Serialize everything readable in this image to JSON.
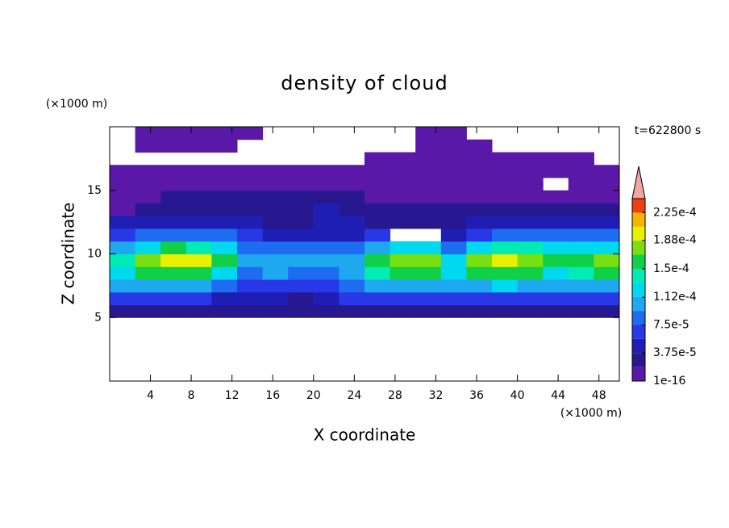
{
  "chart_data": {
    "type": "contour",
    "title": "density of cloud",
    "annotation": "t=622800 s",
    "x_label": "X coordinate",
    "y_label": "Z coordinate",
    "x_unit": "(×1000 m)",
    "y_unit": "(×1000 m)",
    "xlim": [
      0,
      50
    ],
    "ylim": [
      0,
      20
    ],
    "xticks": [
      4,
      8,
      12,
      16,
      20,
      24,
      28,
      32,
      36,
      40,
      44,
      48
    ],
    "yticks": [
      5,
      10,
      15
    ],
    "x": [
      1.25,
      3.75,
      6.25,
      8.75,
      11.25,
      13.75,
      16.25,
      18.75,
      21.25,
      23.75,
      26.25,
      28.75,
      31.25,
      33.75,
      36.25,
      38.75,
      41.25,
      43.75,
      46.25,
      48.75
    ],
    "y": [
      0.5,
      1.5,
      2.5,
      3.5,
      4.5,
      5.5,
      6.5,
      7.5,
      8.5,
      9.5,
      10.5,
      11.5,
      12.5,
      13.5,
      14.5,
      15.5,
      16.5,
      17.5,
      18.5,
      19.5
    ],
    "z": [
      [
        null,
        null,
        null,
        null,
        null,
        null,
        null,
        null,
        null,
        null,
        null,
        null,
        null,
        null,
        null,
        null,
        null,
        null,
        null,
        null
      ],
      [
        null,
        null,
        null,
        null,
        null,
        null,
        null,
        null,
        null,
        null,
        null,
        null,
        null,
        null,
        null,
        null,
        null,
        null,
        null,
        null
      ],
      [
        null,
        null,
        null,
        null,
        null,
        null,
        null,
        null,
        null,
        null,
        null,
        null,
        null,
        null,
        null,
        null,
        null,
        null,
        null,
        null
      ],
      [
        null,
        null,
        null,
        null,
        null,
        null,
        null,
        null,
        null,
        null,
        null,
        null,
        null,
        null,
        null,
        null,
        null,
        null,
        null,
        null
      ],
      [
        null,
        null,
        null,
        null,
        null,
        null,
        null,
        null,
        null,
        null,
        null,
        null,
        null,
        null,
        null,
        null,
        null,
        null,
        null,
        null
      ],
      [
        2e-05,
        3e-05,
        3e-05,
        3e-05,
        3e-05,
        2e-05,
        2e-05,
        2e-05,
        2e-05,
        3e-05,
        3e-05,
        3e-05,
        3e-05,
        2e-05,
        3e-05,
        3e-05,
        3e-05,
        3e-05,
        3e-05,
        3e-05
      ],
      [
        6e-05,
        6e-05,
        6e-05,
        6e-05,
        5e-05,
        4e-05,
        4e-05,
        3e-05,
        4e-05,
        6e-05,
        7e-05,
        7e-05,
        7e-05,
        6e-05,
        6e-05,
        7e-05,
        7e-05,
        6e-05,
        6e-05,
        6e-05
      ],
      [
        0.0001,
        0.00011,
        0.00011,
        0.00011,
        9e-05,
        6e-05,
        7e-05,
        6e-05,
        6e-05,
        9e-05,
        0.00011,
        0.00011,
        0.00011,
        0.0001,
        0.00011,
        0.00012,
        0.00011,
        0.0001,
        0.0001,
        0.0001
      ],
      [
        0.00013,
        0.00015,
        0.00016,
        0.00016,
        0.00013,
        9e-05,
        0.0001,
        9e-05,
        9e-05,
        0.00011,
        0.00014,
        0.00015,
        0.00015,
        0.00013,
        0.00015,
        0.00016,
        0.00015,
        0.00013,
        0.00014,
        0.00015
      ],
      [
        0.00014,
        0.00018,
        0.00019,
        0.00019,
        0.00016,
        0.0001,
        0.00011,
        0.0001,
        0.0001,
        0.00011,
        0.00015,
        0.00018,
        0.00018,
        0.00013,
        0.00017,
        0.00019,
        0.00018,
        0.00015,
        0.00016,
        0.00017
      ],
      [
        0.0001,
        0.00013,
        0.00015,
        0.00014,
        0.00012,
        8e-05,
        8e-05,
        8e-05,
        8e-05,
        9e-05,
        0.0001,
        0.00012,
        0.00013,
        8e-05,
        0.00013,
        0.00014,
        0.00014,
        0.00012,
        0.00013,
        0.00013
      ],
      [
        7e-05,
        8e-05,
        9e-05,
        9e-05,
        8e-05,
        6e-05,
        5e-05,
        5e-05,
        4e-05,
        5e-05,
        6e-05,
        null,
        null,
        5e-05,
        7e-05,
        8e-05,
        8e-05,
        8e-05,
        9e-05,
        9e-05
      ],
      [
        4e-05,
        4e-05,
        5e-05,
        5e-05,
        4e-05,
        4e-05,
        3e-05,
        3e-05,
        5e-05,
        4e-05,
        3e-05,
        3e-05,
        3e-05,
        3e-05,
        4e-05,
        4e-05,
        4e-05,
        4e-05,
        5e-05,
        4e-05
      ],
      [
        1e-05,
        2e-05,
        3e-05,
        3e-05,
        2e-05,
        3e-05,
        2e-05,
        2e-05,
        4e-05,
        3e-05,
        2e-05,
        2e-05,
        2e-05,
        2e-05,
        2e-05,
        2e-05,
        2e-05,
        2e-05,
        2e-05,
        2e-05
      ],
      [
        1e-05,
        1e-05,
        2e-05,
        2e-05,
        2e-05,
        2e-05,
        2e-05,
        2e-05,
        2e-05,
        2e-05,
        1e-05,
        1e-05,
        1e-05,
        1e-05,
        1e-05,
        1e-05,
        1e-05,
        1e-05,
        1e-05,
        1e-05
      ],
      [
        1e-05,
        1e-05,
        1e-05,
        1e-05,
        1e-05,
        1e-05,
        1e-05,
        1e-05,
        1e-05,
        1e-05,
        1e-05,
        1e-05,
        1e-05,
        1e-05,
        1e-05,
        1e-05,
        1e-05,
        null,
        1e-05,
        1e-05
      ],
      [
        1e-05,
        1e-05,
        1e-05,
        1e-05,
        1e-05,
        1e-05,
        1e-05,
        1e-05,
        1e-05,
        1e-05,
        1e-05,
        1e-05,
        1e-05,
        1e-05,
        1e-05,
        1e-05,
        1e-05,
        1e-05,
        1e-05,
        1e-05
      ],
      [
        null,
        null,
        null,
        null,
        null,
        null,
        null,
        null,
        null,
        null,
        1e-05,
        1e-05,
        1e-05,
        1e-05,
        1e-05,
        1e-05,
        1e-05,
        1e-05,
        1e-05,
        null
      ],
      [
        null,
        1e-05,
        1e-05,
        1e-05,
        1e-05,
        null,
        null,
        null,
        null,
        null,
        null,
        null,
        1e-05,
        1e-05,
        1e-05,
        null,
        null,
        null,
        null,
        null
      ],
      [
        null,
        1e-05,
        1e-05,
        1e-05,
        1e-05,
        1e-05,
        null,
        null,
        null,
        null,
        null,
        null,
        1e-05,
        1e-05,
        null,
        null,
        null,
        null,
        null,
        null
      ]
    ],
    "levels": [
      1e-16,
      1.875e-05,
      3.75e-05,
      5.625e-05,
      7.5e-05,
      9.375e-05,
      0.0001125,
      0.00013125,
      0.00015,
      0.00016875,
      0.0001875,
      0.00020625,
      0.000225,
      0.00024375
    ],
    "colors": [
      "#5a18a8",
      "#281890",
      "#1e1eb4",
      "#2838e6",
      "#1e6cf0",
      "#1ea8f0",
      "#00d8f0",
      "#00ecb4",
      "#10d048",
      "#78e010",
      "#e8f000",
      "#f8b400",
      "#f04010"
    ],
    "extend_color": "#f4a4a4",
    "cbar_ticks": [
      {
        "value": 1e-16,
        "label": "1e-16"
      },
      {
        "value": 3.75e-05,
        "label": "3.75e-5"
      },
      {
        "value": 7.5e-05,
        "label": "7.5e-5"
      },
      {
        "value": 0.000112,
        "label": "1.12e-4"
      },
      {
        "value": 0.00015,
        "label": "1.5e-4"
      },
      {
        "value": 0.000188,
        "label": "1.88e-4"
      },
      {
        "value": 0.000225,
        "label": "2.25e-4"
      }
    ]
  }
}
